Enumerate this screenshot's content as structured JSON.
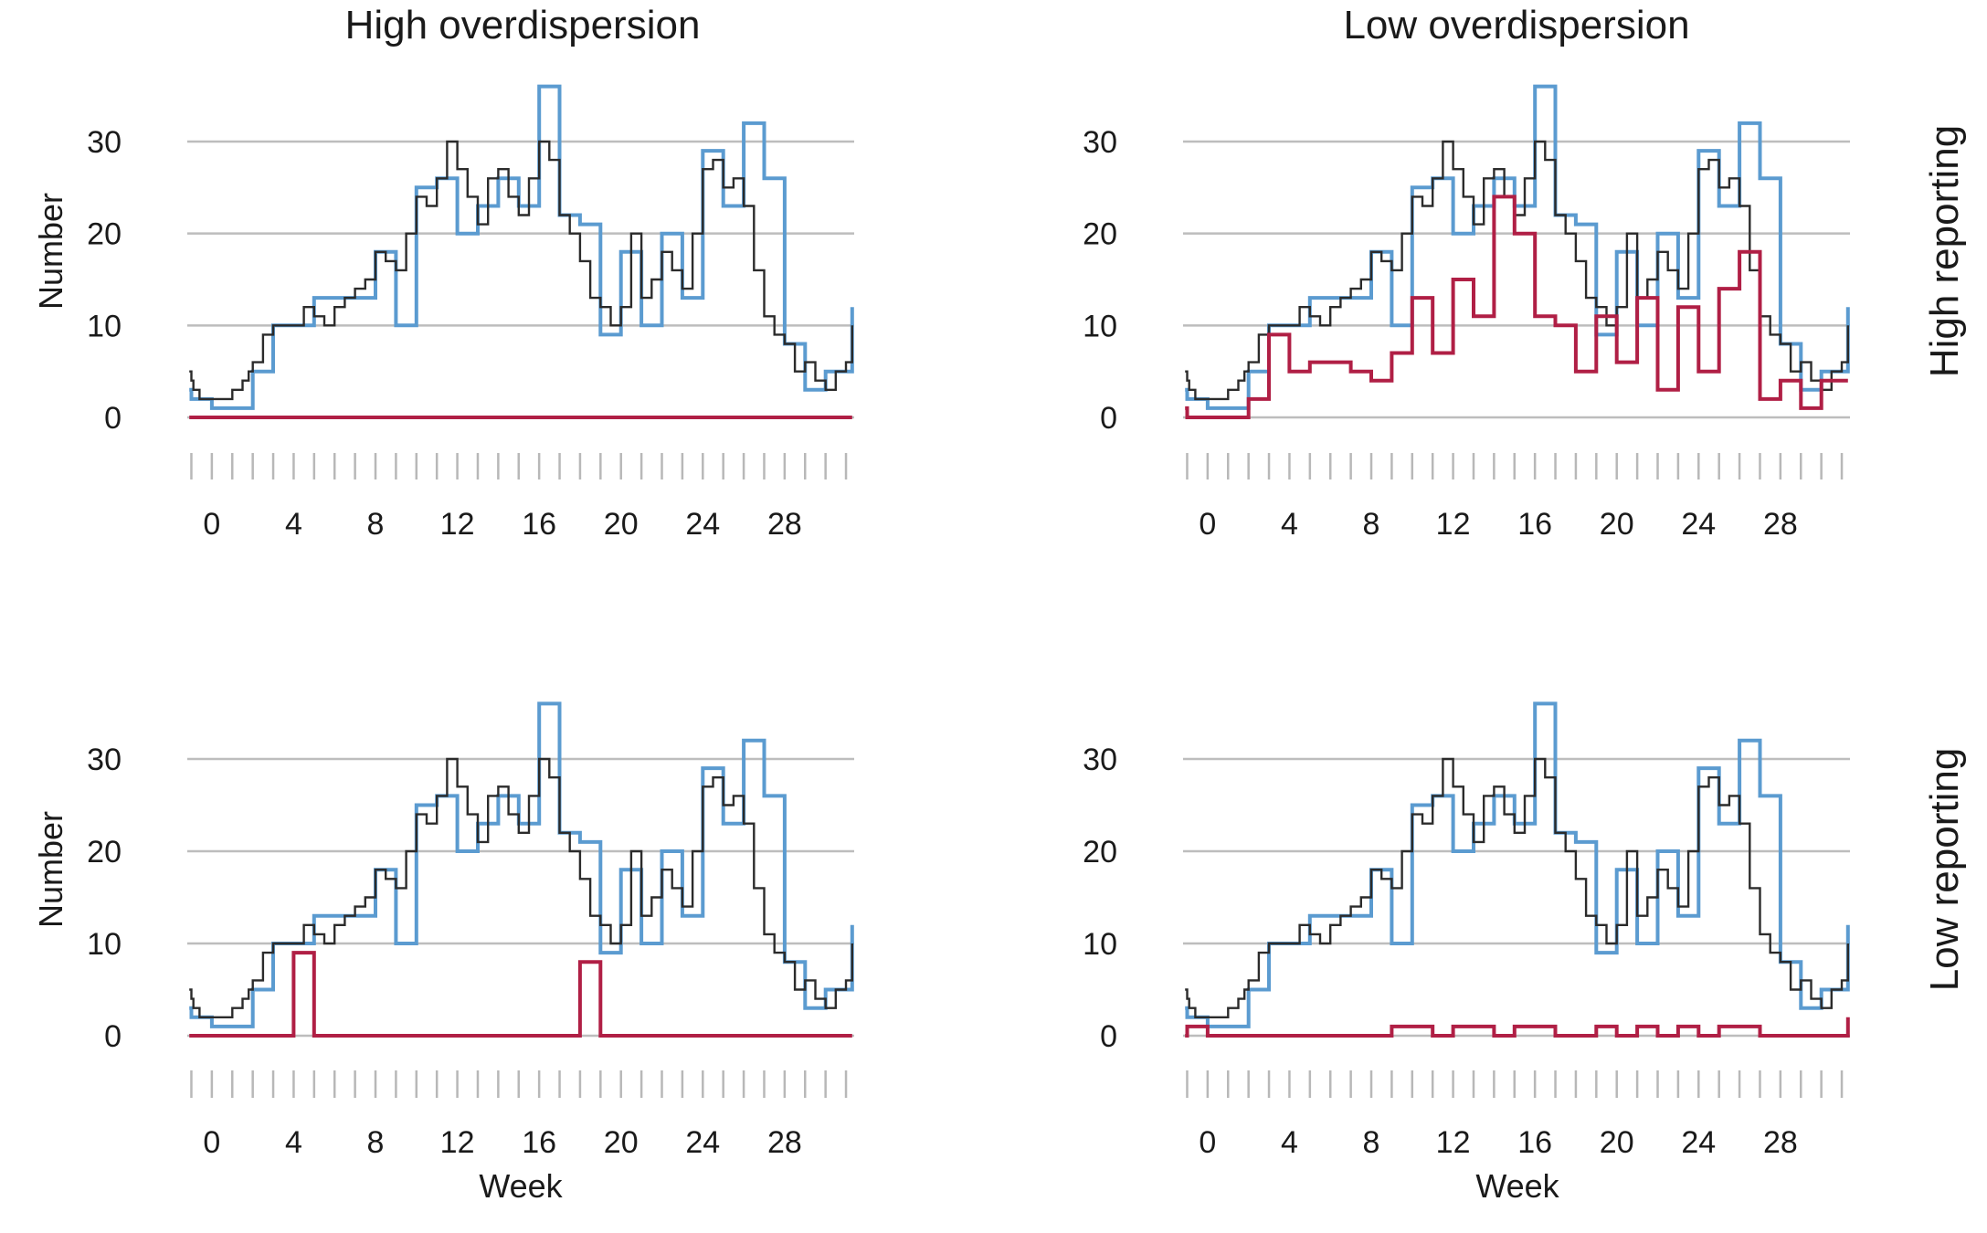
{
  "panel_titles": {
    "columns": [
      "High overdispersion",
      "Low overdispersion"
    ],
    "rows": [
      "High reporting",
      "Low reporting"
    ]
  },
  "axis_titles": {
    "y": "Number",
    "x": "Week"
  },
  "colors": {
    "observed": "#2b2b2b",
    "blue": "#5b9bd0",
    "red": "#b01f45"
  },
  "chart_data": [
    {
      "type": "line",
      "panel": "High overdispersion / High reporting",
      "x_ticks": [
        0,
        4,
        8,
        12,
        16,
        20,
        24,
        28
      ],
      "y_ticks": [
        0,
        10,
        20,
        30
      ],
      "xlim": [
        -1.2,
        31.4
      ],
      "ylim": [
        0,
        36
      ],
      "series": [
        {
          "role": "observed",
          "style": "thin-step",
          "x": [
            -1.1,
            -1,
            -0.9,
            -0.6,
            0,
            0.6,
            1,
            1.5,
            1.8,
            2,
            2.5,
            3,
            3.5,
            4,
            4.5,
            5,
            5.5,
            6,
            6.5,
            7,
            7.5,
            8,
            8.5,
            9,
            9.5,
            10,
            10.5,
            11,
            11.5,
            12,
            12.5,
            13,
            13.5,
            14,
            14.5,
            15,
            15.5,
            16,
            16.5,
            17,
            17.5,
            18,
            18.5,
            19,
            19.5,
            20,
            20.5,
            21,
            21.5,
            22,
            22.5,
            23,
            23.5,
            24,
            24.5,
            25,
            25.5,
            26,
            26.5,
            27,
            27.5,
            28,
            28.5,
            29,
            29.5,
            30,
            30.5,
            31,
            31.3
          ],
          "y": [
            5,
            4,
            3,
            2,
            2,
            2,
            3,
            4,
            5,
            6,
            9,
            10,
            10,
            10,
            12,
            11,
            10,
            12,
            13,
            14,
            15,
            18,
            17,
            16,
            20,
            24,
            23,
            26,
            30,
            27,
            24,
            21,
            26,
            27,
            24,
            22,
            26,
            30,
            28,
            22,
            20,
            17,
            13,
            12,
            10,
            12,
            20,
            13,
            15,
            18,
            16,
            14,
            20,
            27,
            28,
            25,
            26,
            23,
            16,
            11,
            9,
            8,
            5,
            6,
            4,
            3,
            5,
            6,
            10
          ]
        },
        {
          "role": "blue",
          "style": "step",
          "x": [
            -1.1,
            -1,
            0,
            2,
            3,
            5,
            8,
            9,
            10,
            11,
            12,
            13,
            14,
            15,
            16,
            17,
            18,
            19,
            20,
            21,
            22,
            23,
            24,
            25,
            26,
            27,
            28,
            29,
            30,
            31.3
          ],
          "y": [
            3,
            2,
            1,
            5,
            10,
            13,
            18,
            10,
            25,
            26,
            20,
            23,
            26,
            23,
            36,
            22,
            21,
            9,
            18,
            10,
            20,
            13,
            29,
            23,
            32,
            26,
            8,
            3,
            5,
            12
          ]
        },
        {
          "role": "red",
          "style": "step",
          "x": [
            -1.1,
            31.3
          ],
          "y": [
            0,
            0
          ]
        }
      ]
    },
    {
      "type": "line",
      "panel": "Low overdispersion / High reporting",
      "x_ticks": [
        0,
        4,
        8,
        12,
        16,
        20,
        24,
        28
      ],
      "y_ticks": [
        0,
        10,
        20,
        30
      ],
      "xlim": [
        -1.2,
        31.4
      ],
      "ylim": [
        0,
        36
      ],
      "series": [
        {
          "role": "observed",
          "style": "thin-step",
          "x": [
            -1.1,
            -1,
            -0.9,
            -0.6,
            0,
            0.6,
            1,
            1.5,
            1.8,
            2,
            2.5,
            3,
            3.5,
            4,
            4.5,
            5,
            5.5,
            6,
            6.5,
            7,
            7.5,
            8,
            8.5,
            9,
            9.5,
            10,
            10.5,
            11,
            11.5,
            12,
            12.5,
            13,
            13.5,
            14,
            14.5,
            15,
            15.5,
            16,
            16.5,
            17,
            17.5,
            18,
            18.5,
            19,
            19.5,
            20,
            20.5,
            21,
            21.5,
            22,
            22.5,
            23,
            23.5,
            24,
            24.5,
            25,
            25.5,
            26,
            26.5,
            27,
            27.5,
            28,
            28.5,
            29,
            29.5,
            30,
            30.5,
            31,
            31.3
          ],
          "y": [
            5,
            4,
            3,
            2,
            2,
            2,
            3,
            4,
            5,
            6,
            9,
            10,
            10,
            10,
            12,
            11,
            10,
            12,
            13,
            14,
            15,
            18,
            17,
            16,
            20,
            24,
            23,
            26,
            30,
            27,
            24,
            21,
            26,
            27,
            24,
            22,
            26,
            30,
            28,
            22,
            20,
            17,
            13,
            12,
            10,
            12,
            20,
            13,
            15,
            18,
            16,
            14,
            20,
            27,
            28,
            25,
            26,
            23,
            16,
            11,
            9,
            8,
            5,
            6,
            4,
            3,
            5,
            6,
            10
          ]
        },
        {
          "role": "blue",
          "style": "step",
          "x": [
            -1.1,
            -1,
            0,
            2,
            3,
            5,
            8,
            9,
            10,
            11,
            12,
            13,
            14,
            15,
            16,
            17,
            18,
            19,
            20,
            21,
            22,
            23,
            24,
            25,
            26,
            27,
            28,
            29,
            30,
            31.3
          ],
          "y": [
            3,
            2,
            1,
            5,
            10,
            13,
            18,
            10,
            25,
            26,
            20,
            23,
            26,
            23,
            36,
            22,
            21,
            9,
            18,
            10,
            20,
            13,
            29,
            23,
            32,
            26,
            8,
            3,
            5,
            12
          ]
        },
        {
          "role": "red",
          "style": "step",
          "x": [
            -1.1,
            -1,
            2,
            3,
            4,
            5,
            7,
            8,
            9,
            10,
            11,
            12,
            13,
            14,
            15,
            16,
            17,
            18,
            19,
            20,
            21,
            22,
            23,
            24,
            25,
            26,
            27,
            28,
            29,
            30,
            31.3
          ],
          "y": [
            1,
            0,
            2,
            9,
            5,
            6,
            5,
            4,
            7,
            13,
            7,
            15,
            11,
            24,
            20,
            11,
            10,
            5,
            11,
            6,
            13,
            3,
            12,
            5,
            14,
            18,
            2,
            4,
            1,
            4,
            4
          ]
        }
      ]
    },
    {
      "type": "line",
      "panel": "High overdispersion / Low reporting",
      "x_ticks": [
        0,
        4,
        8,
        12,
        16,
        20,
        24,
        28
      ],
      "y_ticks": [
        0,
        10,
        20,
        30
      ],
      "xlim": [
        -1.2,
        31.4
      ],
      "ylim": [
        0,
        36
      ],
      "series": [
        {
          "role": "observed",
          "style": "thin-step",
          "x": [
            -1.1,
            -1,
            -0.9,
            -0.6,
            0,
            0.6,
            1,
            1.5,
            1.8,
            2,
            2.5,
            3,
            3.5,
            4,
            4.5,
            5,
            5.5,
            6,
            6.5,
            7,
            7.5,
            8,
            8.5,
            9,
            9.5,
            10,
            10.5,
            11,
            11.5,
            12,
            12.5,
            13,
            13.5,
            14,
            14.5,
            15,
            15.5,
            16,
            16.5,
            17,
            17.5,
            18,
            18.5,
            19,
            19.5,
            20,
            20.5,
            21,
            21.5,
            22,
            22.5,
            23,
            23.5,
            24,
            24.5,
            25,
            25.5,
            26,
            26.5,
            27,
            27.5,
            28,
            28.5,
            29,
            29.5,
            30,
            30.5,
            31,
            31.3
          ],
          "y": [
            5,
            4,
            3,
            2,
            2,
            2,
            3,
            4,
            5,
            6,
            9,
            10,
            10,
            10,
            12,
            11,
            10,
            12,
            13,
            14,
            15,
            18,
            17,
            16,
            20,
            24,
            23,
            26,
            30,
            27,
            24,
            21,
            26,
            27,
            24,
            22,
            26,
            30,
            28,
            22,
            20,
            17,
            13,
            12,
            10,
            12,
            20,
            13,
            15,
            18,
            16,
            14,
            20,
            27,
            28,
            25,
            26,
            23,
            16,
            11,
            9,
            8,
            5,
            6,
            4,
            3,
            5,
            6,
            10
          ]
        },
        {
          "role": "blue",
          "style": "step",
          "x": [
            -1.1,
            -1,
            0,
            2,
            3,
            5,
            8,
            9,
            10,
            11,
            12,
            13,
            14,
            15,
            16,
            17,
            18,
            19,
            20,
            21,
            22,
            23,
            24,
            25,
            26,
            27,
            28,
            29,
            30,
            31.3
          ],
          "y": [
            3,
            2,
            1,
            5,
            10,
            13,
            18,
            10,
            25,
            26,
            20,
            23,
            26,
            23,
            36,
            22,
            21,
            9,
            18,
            10,
            20,
            13,
            29,
            23,
            32,
            26,
            8,
            3,
            5,
            12
          ]
        },
        {
          "role": "red",
          "style": "step",
          "x": [
            -1.1,
            4,
            5,
            18,
            19,
            31.3
          ],
          "y": [
            0,
            9,
            0,
            8,
            0,
            0
          ]
        }
      ]
    },
    {
      "type": "line",
      "panel": "Low overdispersion / Low reporting",
      "x_ticks": [
        0,
        4,
        8,
        12,
        16,
        20,
        24,
        28
      ],
      "y_ticks": [
        0,
        10,
        20,
        30
      ],
      "xlim": [
        -1.2,
        31.4
      ],
      "ylim": [
        0,
        36
      ],
      "series": [
        {
          "role": "observed",
          "style": "thin-step",
          "x": [
            -1.1,
            -1,
            -0.9,
            -0.6,
            0,
            0.6,
            1,
            1.5,
            1.8,
            2,
            2.5,
            3,
            3.5,
            4,
            4.5,
            5,
            5.5,
            6,
            6.5,
            7,
            7.5,
            8,
            8.5,
            9,
            9.5,
            10,
            10.5,
            11,
            11.5,
            12,
            12.5,
            13,
            13.5,
            14,
            14.5,
            15,
            15.5,
            16,
            16.5,
            17,
            17.5,
            18,
            18.5,
            19,
            19.5,
            20,
            20.5,
            21,
            21.5,
            22,
            22.5,
            23,
            23.5,
            24,
            24.5,
            25,
            25.5,
            26,
            26.5,
            27,
            27.5,
            28,
            28.5,
            29,
            29.5,
            30,
            30.5,
            31,
            31.3
          ],
          "y": [
            5,
            4,
            3,
            2,
            2,
            2,
            3,
            4,
            5,
            6,
            9,
            10,
            10,
            10,
            12,
            11,
            10,
            12,
            13,
            14,
            15,
            18,
            17,
            16,
            20,
            24,
            23,
            26,
            30,
            27,
            24,
            21,
            26,
            27,
            24,
            22,
            26,
            30,
            28,
            22,
            20,
            17,
            13,
            12,
            10,
            12,
            20,
            13,
            15,
            18,
            16,
            14,
            20,
            27,
            28,
            25,
            26,
            23,
            16,
            11,
            9,
            8,
            5,
            6,
            4,
            3,
            5,
            6,
            10
          ]
        },
        {
          "role": "blue",
          "style": "step",
          "x": [
            -1.1,
            -1,
            0,
            2,
            3,
            5,
            8,
            9,
            10,
            11,
            12,
            13,
            14,
            15,
            16,
            17,
            18,
            19,
            20,
            21,
            22,
            23,
            24,
            25,
            26,
            27,
            28,
            29,
            30,
            31.3
          ],
          "y": [
            3,
            2,
            1,
            5,
            10,
            13,
            18,
            10,
            25,
            26,
            20,
            23,
            26,
            23,
            36,
            22,
            21,
            9,
            18,
            10,
            20,
            13,
            29,
            23,
            32,
            26,
            8,
            3,
            5,
            12
          ]
        },
        {
          "role": "red",
          "style": "step",
          "x": [
            -1.1,
            -1,
            0,
            9,
            11,
            12,
            14,
            15,
            17,
            19,
            20,
            21,
            22,
            23,
            24,
            25,
            27,
            31,
            31.3
          ],
          "y": [
            0,
            1,
            0,
            1,
            0,
            1,
            0,
            1,
            0,
            1,
            0,
            1,
            0,
            1,
            0,
            1,
            0,
            0,
            2
          ]
        }
      ]
    }
  ]
}
